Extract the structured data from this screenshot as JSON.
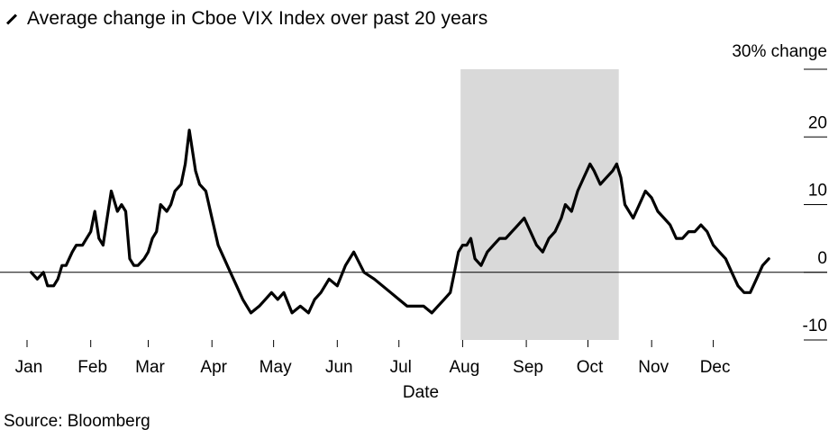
{
  "chart_data": {
    "type": "line",
    "title": "Average change in Cboe VIX Index over past 20 years",
    "xlabel": "Date",
    "ylabel": "",
    "y_unit_label": "30% change",
    "x_tick_labels": [
      "Jan",
      "Feb",
      "Mar",
      "Apr",
      "May",
      "Jun",
      "Jul",
      "Aug",
      "Sep",
      "Oct",
      "Nov",
      "Dec"
    ],
    "y_tick_labels": [
      "20",
      "10",
      "0",
      "-10"
    ],
    "y_ticks": [
      30,
      20,
      10,
      0,
      -10
    ],
    "ylim": [
      -10,
      30
    ],
    "xlim": [
      1,
      365
    ],
    "shaded_region": {
      "x_start": 212,
      "x_end": 289,
      "color": "#d9d9d9"
    },
    "series": [
      {
        "color": "#000000",
        "x": [
          3,
          6,
          9,
          11,
          14,
          16,
          18,
          20,
          23,
          25,
          28,
          30,
          32,
          34,
          36,
          38,
          40,
          42,
          45,
          47,
          49,
          51,
          53,
          55,
          58,
          60,
          62,
          64,
          66,
          69,
          71,
          73,
          76,
          78,
          80,
          83,
          85,
          88,
          91,
          94,
          97,
          100,
          103,
          106,
          110,
          114,
          117,
          120,
          123,
          126,
          130,
          134,
          138,
          141,
          144,
          148,
          152,
          156,
          160,
          165,
          170,
          174,
          178,
          182,
          186,
          190,
          194,
          198,
          201,
          204,
          207,
          209,
          211,
          213,
          215,
          217,
          219,
          222,
          225,
          228,
          231,
          234,
          237,
          240,
          243,
          246,
          249,
          252,
          255,
          258,
          261,
          263,
          266,
          269,
          272,
          275,
          277,
          280,
          283,
          286,
          288,
          290,
          292,
          294,
          296,
          299,
          302,
          305,
          308,
          311,
          314,
          317,
          320,
          323,
          326,
          329,
          332,
          335,
          338,
          341,
          344,
          347,
          350,
          353,
          356,
          359,
          362
        ],
        "y": [
          0,
          -1,
          0,
          -2,
          -2,
          -1,
          1,
          1,
          3,
          4,
          4,
          5,
          6,
          9,
          5,
          4,
          8,
          12,
          9,
          10,
          9,
          2,
          1,
          1,
          2,
          3,
          5,
          6,
          10,
          9,
          10,
          12,
          13,
          16,
          21,
          15,
          13,
          12,
          8,
          4,
          2,
          0,
          -2,
          -4,
          -6,
          -5,
          -4,
          -3,
          -4,
          -3,
          -6,
          -5,
          -6,
          -4,
          -3,
          -1,
          -2,
          1,
          3,
          0,
          -1,
          -2,
          -3,
          -4,
          -5,
          -5,
          -5,
          -6,
          -5,
          -4,
          -3,
          0,
          3,
          4,
          4,
          5,
          2,
          1,
          3,
          4,
          5,
          5,
          6,
          7,
          8,
          6,
          4,
          3,
          5,
          6,
          8,
          10,
          9,
          12,
          14,
          16,
          15,
          13,
          14,
          15,
          16,
          14,
          10,
          9,
          8,
          10,
          12,
          11,
          9,
          8,
          7,
          5,
          5,
          6,
          6,
          7,
          6,
          4,
          3,
          2,
          0,
          -2,
          -3,
          -3,
          -1,
          1,
          2
        ]
      }
    ],
    "grid": false,
    "baseline_y": 0
  },
  "source": "Source: Bloomberg"
}
